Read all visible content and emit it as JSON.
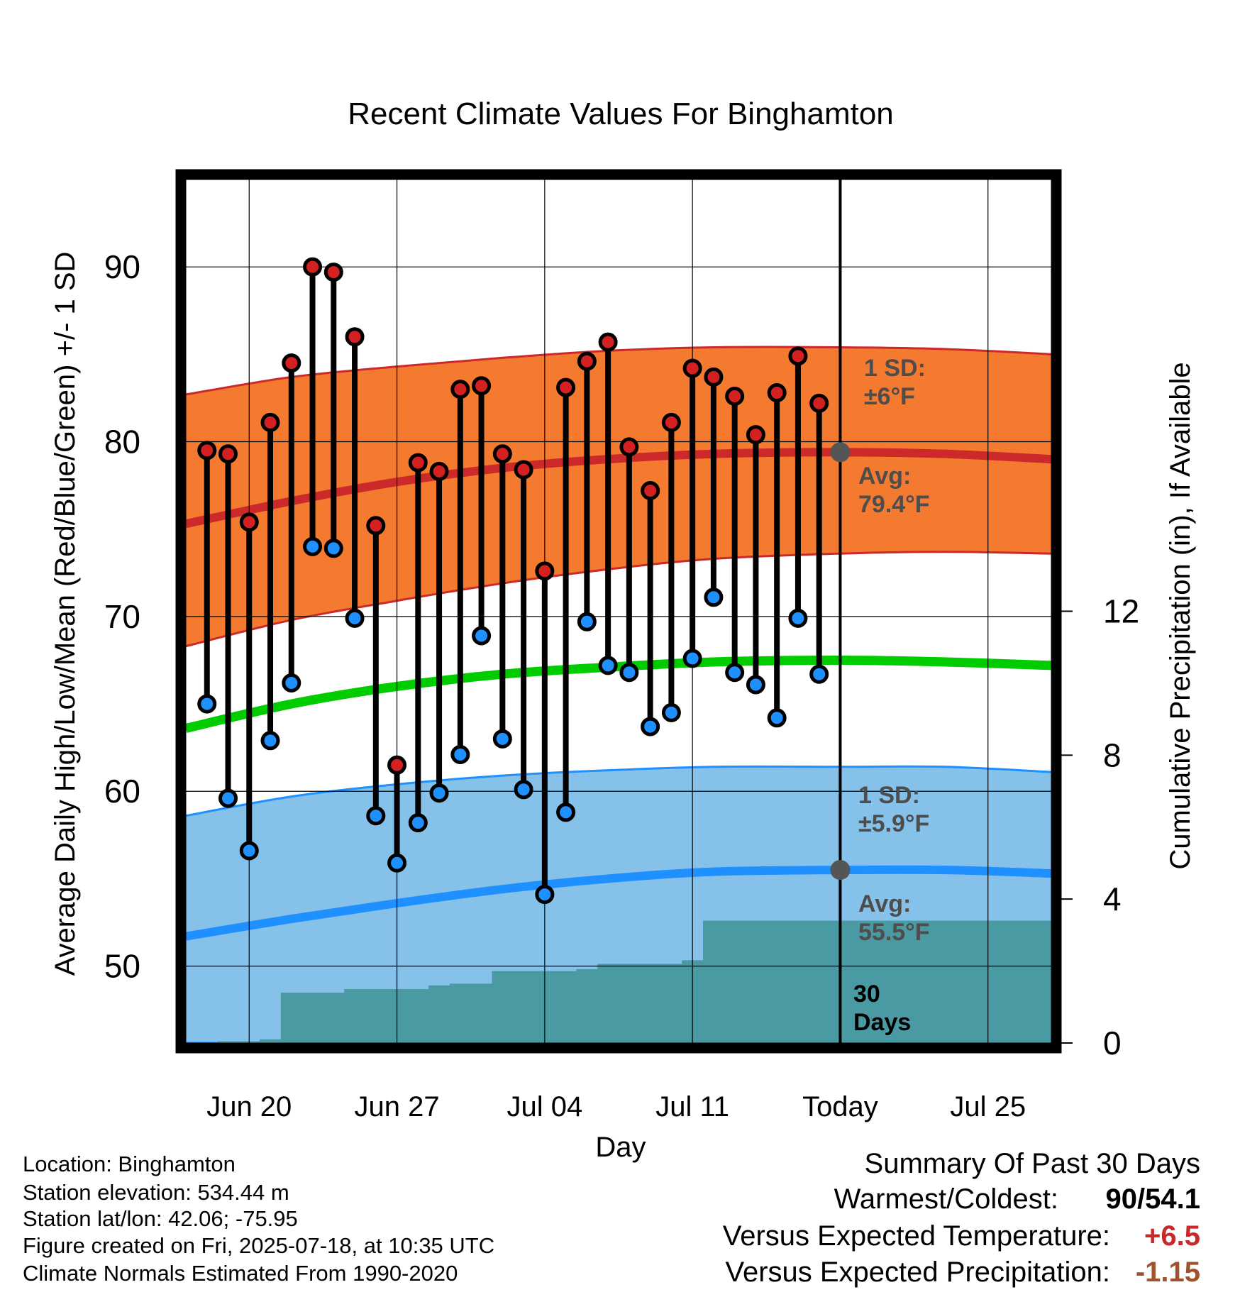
{
  "chart_data": {
    "type": "line",
    "title": "Recent Climate Values For Binghamton",
    "xlabel": "Day",
    "ylabel": "Average Daily High/Low/Mean (Red/Blue/Green) +/- 1 SD",
    "y2label": "Cumulative Precipitation (in), If Available",
    "ylim": [
      45.6,
      95
    ],
    "y2lim": [
      0,
      24
    ],
    "x_range": [
      "2025-06-17",
      "2025-07-28"
    ],
    "yticks": [
      50,
      60,
      70,
      80,
      90
    ],
    "y2ticks": [
      0,
      4,
      8,
      12
    ],
    "xticks": [
      {
        "date": "2025-06-20",
        "label": "Jun 20"
      },
      {
        "date": "2025-06-27",
        "label": "Jun 27"
      },
      {
        "date": "2025-07-04",
        "label": "Jul 04"
      },
      {
        "date": "2025-07-11",
        "label": "Jul 11"
      },
      {
        "date": "2025-07-18",
        "label": "Today"
      },
      {
        "date": "2025-07-25",
        "label": "Jul 25"
      }
    ],
    "grid": true,
    "dates": [
      "2025-06-18",
      "2025-06-19",
      "2025-06-20",
      "2025-06-21",
      "2025-06-22",
      "2025-06-23",
      "2025-06-24",
      "2025-06-25",
      "2025-06-26",
      "2025-06-27",
      "2025-06-28",
      "2025-06-29",
      "2025-06-30",
      "2025-07-01",
      "2025-07-02",
      "2025-07-03",
      "2025-07-04",
      "2025-07-05",
      "2025-07-06",
      "2025-07-07",
      "2025-07-08",
      "2025-07-09",
      "2025-07-10",
      "2025-07-11",
      "2025-07-12",
      "2025-07-13",
      "2025-07-14",
      "2025-07-15",
      "2025-07-16",
      "2025-07-17"
    ],
    "highs": [
      79.5,
      79.3,
      75.4,
      81.1,
      84.5,
      90.0,
      89.7,
      86.0,
      75.2,
      61.5,
      78.8,
      78.3,
      83.0,
      83.2,
      79.3,
      78.4,
      72.6,
      83.1,
      84.6,
      85.7,
      79.7,
      77.2,
      81.1,
      84.2,
      83.7,
      82.6,
      80.4,
      82.8,
      84.9,
      82.2
    ],
    "lows": [
      65.0,
      59.6,
      56.6,
      62.9,
      66.2,
      74.0,
      73.9,
      69.9,
      58.6,
      55.9,
      58.2,
      59.9,
      62.1,
      68.9,
      63.0,
      60.1,
      54.1,
      58.8,
      69.7,
      67.2,
      66.8,
      63.7,
      64.5,
      67.6,
      71.1,
      66.8,
      66.1,
      64.2,
      69.9,
      66.7
    ],
    "normals_x": [
      "2025-06-17",
      "2025-06-22",
      "2025-06-27",
      "2025-07-02",
      "2025-07-07",
      "2025-07-12",
      "2025-07-18",
      "2025-07-23",
      "2025-07-28"
    ],
    "normal_high": [
      75.3,
      76.6,
      77.7,
      78.5,
      79.0,
      79.3,
      79.4,
      79.3,
      79.0
    ],
    "normal_high_sd_upper": [
      82.7,
      83.7,
      84.3,
      84.8,
      85.2,
      85.4,
      85.4,
      85.3,
      85.0
    ],
    "normal_high_sd_lower": [
      68.3,
      69.8,
      70.9,
      71.9,
      72.7,
      73.3,
      73.6,
      73.7,
      73.6
    ],
    "normal_mean": [
      63.6,
      65.0,
      66.0,
      66.7,
      67.1,
      67.4,
      67.5,
      67.4,
      67.2
    ],
    "normal_low": [
      51.7,
      52.7,
      53.6,
      54.4,
      55.0,
      55.4,
      55.5,
      55.5,
      55.3
    ],
    "normal_low_sd_upper": [
      58.6,
      59.7,
      60.4,
      60.9,
      61.2,
      61.4,
      61.4,
      61.4,
      61.1
    ],
    "normal_low_sd_lower": [
      45.6,
      45.6,
      45.6,
      45.6,
      45.6,
      45.6,
      45.6,
      45.6,
      45.6
    ],
    "cumulative_precip": [
      0.0,
      0.05,
      0.05,
      0.1,
      1.4,
      1.4,
      1.4,
      1.5,
      1.5,
      1.5,
      1.5,
      1.6,
      1.65,
      1.65,
      2.0,
      2.0,
      2.0,
      2.0,
      2.05,
      2.2,
      2.2,
      2.2,
      2.2,
      2.3,
      3.4,
      3.4,
      3.4,
      3.4,
      3.4,
      3.4
    ],
    "annotations": {
      "high_sd": [
        "1 SD:",
        "±6°F"
      ],
      "high_avg": [
        "Avg:",
        "79.4°F"
      ],
      "low_sd": [
        "1 SD:",
        "±5.9°F"
      ],
      "low_avg": [
        "Avg:",
        "55.5°F"
      ],
      "window": [
        "30",
        "Days"
      ]
    },
    "colors": {
      "high_band": "#f47a30",
      "high_line": "#cc2a2a",
      "high_dot": "#d42020",
      "low_band": "#85c1e8",
      "low_line": "#1e90ff",
      "low_dot": "#1e90ff",
      "mean_line": "#00cc00",
      "precip": "#4a9aa3",
      "annotation": "#4d4d4d",
      "warm_value": "#c82828",
      "precip_value": "#a0522d"
    }
  },
  "info": {
    "location": "Location: Binghamton",
    "elevation": "Station elevation: 534.44 m",
    "latlon": "Station lat/lon: 42.06; -75.95",
    "created": "Figure created on Fri, 2025-07-18, at 10:35 UTC",
    "normals": "Climate Normals Estimated From 1990-2020"
  },
  "summary": {
    "title": "Summary Of Past 30 Days",
    "warmest_label": "Warmest/Coldest:",
    "warmest_value": "90/54.1",
    "temp_label": "Versus Expected Temperature:",
    "temp_value": "+6.5",
    "precip_label": "Versus Expected Precipitation:",
    "precip_value": "-1.15"
  }
}
